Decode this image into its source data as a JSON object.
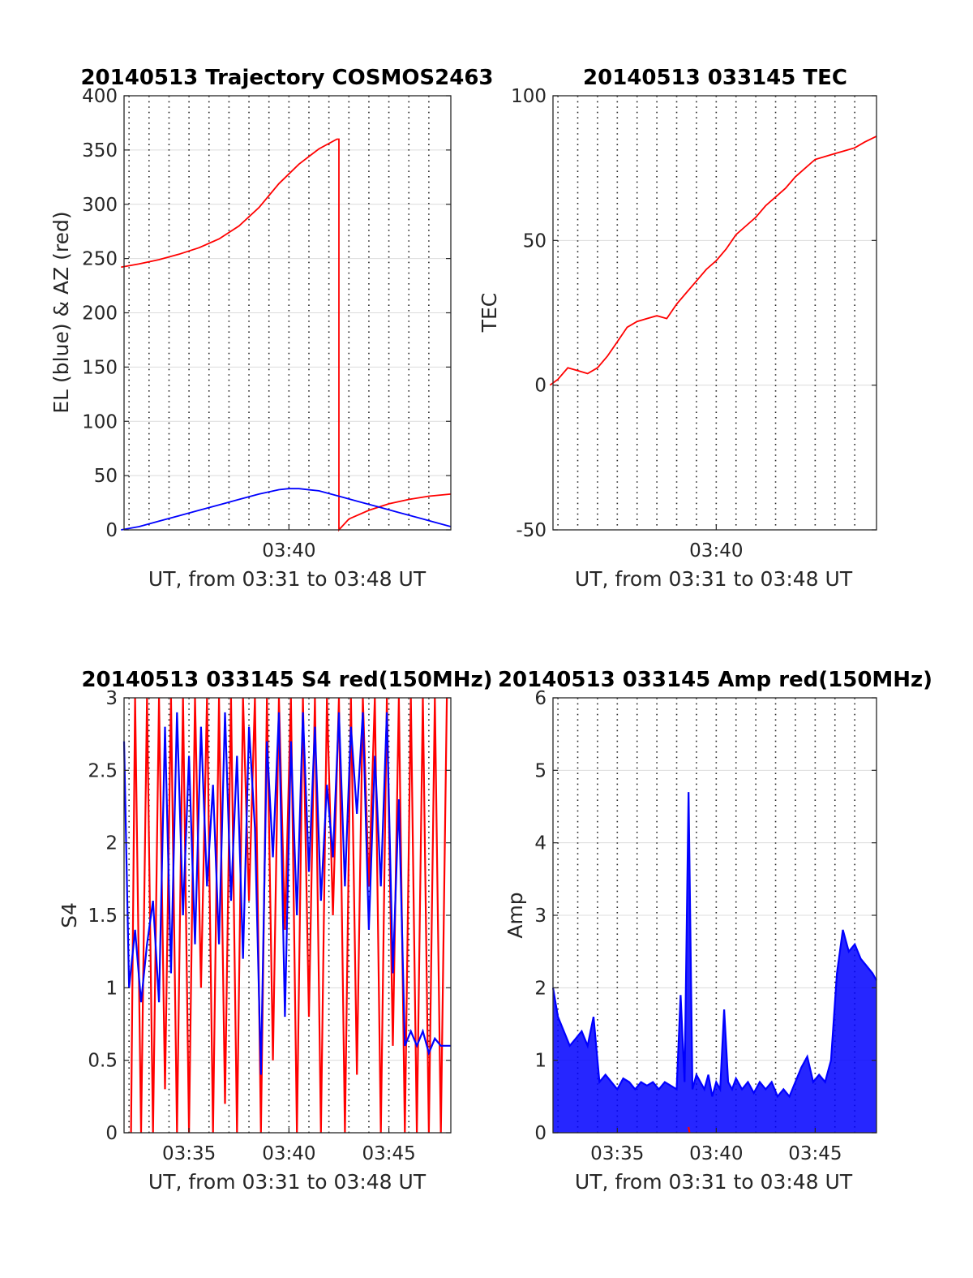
{
  "figure": {
    "colors": {
      "red": "#ff0000",
      "blue": "#0000ff",
      "axis": "#262626",
      "grid": "#262626"
    }
  },
  "chart_data": [
    {
      "type": "line",
      "title": "20140513 Trajectory COSMOS2463",
      "xlabel": "UT, from 03:31 to 03:48 UT",
      "ylabel": "EL (blue) & AZ (red)",
      "xlim_minutes": [
        211.75,
        228.1
      ],
      "ylim": [
        0,
        400
      ],
      "yticks": [
        0,
        50,
        100,
        150,
        200,
        250,
        300,
        350,
        400
      ],
      "yticklabels": [
        "0",
        "50",
        "100",
        "150",
        "200",
        "250",
        "300",
        "350",
        "400"
      ],
      "xticks": [
        220
      ],
      "xticklabels": [
        "03:40"
      ],
      "grid_x_minutes": [
        212,
        213,
        214,
        215,
        216,
        217,
        218,
        219,
        220,
        221,
        222,
        223,
        224,
        225,
        226,
        227
      ],
      "grid": "dotted vertical, light horizontal",
      "series": [
        {
          "name": "AZ",
          "color": "red",
          "x_minutes": [
            211.6,
            212.5,
            213.5,
            214.5,
            215.5,
            216.5,
            217.5,
            218.5,
            219.5,
            220.5,
            221.5,
            222.4,
            222.5,
            222.5,
            223,
            224,
            225,
            226,
            227,
            228.1
          ],
          "values": [
            242,
            245,
            249,
            254,
            260,
            268,
            280,
            297,
            319,
            337,
            351,
            360,
            360,
            0,
            10,
            18,
            24,
            28,
            31,
            33
          ]
        },
        {
          "name": "EL",
          "color": "blue",
          "x_minutes": [
            211.6,
            212.5,
            213.5,
            214.5,
            215.5,
            216.5,
            217.5,
            218.5,
            219.5,
            220,
            220.5,
            221.5,
            222.5,
            223.5,
            224.5,
            225.5,
            226.5,
            227.5,
            228.1
          ],
          "values": [
            0,
            3,
            8,
            13,
            18,
            23,
            28,
            33,
            37,
            38,
            38,
            36,
            31,
            26,
            21,
            16,
            11,
            6,
            3
          ]
        }
      ]
    },
    {
      "type": "line",
      "title": "20140513 033145 TEC",
      "xlabel": "UT, from 03:31 to 03:48 UT",
      "ylabel": "TEC",
      "xlim_minutes": [
        211.75,
        228.1
      ],
      "ylim": [
        -50,
        100
      ],
      "yticks": [
        -50,
        0,
        50,
        100
      ],
      "yticklabels": [
        "-50",
        "0",
        "50",
        "100"
      ],
      "xticks": [
        220
      ],
      "xticklabels": [
        "03:40"
      ],
      "grid_x_minutes": [
        212,
        213,
        214,
        215,
        216,
        217,
        218,
        219,
        220,
        221,
        222,
        223,
        224,
        225,
        226,
        227
      ],
      "series": [
        {
          "name": "TEC",
          "color": "red",
          "x_minutes": [
            211.6,
            212,
            212.5,
            213,
            213.5,
            214,
            214.5,
            215,
            215.5,
            216,
            216.5,
            217,
            217.5,
            218,
            218.5,
            219,
            219.5,
            220,
            220.5,
            221,
            221.5,
            222,
            222.5,
            223,
            223.5,
            224,
            224.5,
            225,
            225.5,
            226,
            226.5,
            227,
            227.5,
            228.1
          ],
          "values": [
            0,
            2,
            6,
            5,
            4,
            6,
            10,
            15,
            20,
            22,
            23,
            24,
            23,
            28,
            32,
            36,
            40,
            43,
            47,
            52,
            55,
            58,
            62,
            65,
            68,
            72,
            75,
            78,
            79,
            80,
            81,
            82,
            84,
            86
          ]
        }
      ]
    },
    {
      "type": "line",
      "title": "20140513 033145 S4 red(150MHz)",
      "xlabel": "UT, from 03:31 to 03:48 UT",
      "ylabel": "S4",
      "xlim_minutes": [
        211.75,
        228.1
      ],
      "ylim": [
        0,
        3
      ],
      "yticks": [
        0,
        0.5,
        1,
        1.5,
        2,
        2.5,
        3
      ],
      "yticklabels": [
        "0",
        "0.5",
        "1",
        "1.5",
        "2",
        "2.5",
        "3"
      ],
      "xticks": [
        215,
        220,
        225
      ],
      "xticklabels": [
        "03:35",
        "03:40",
        "03:45"
      ],
      "grid_x_minutes": [
        212,
        213,
        214,
        215,
        216,
        217,
        218,
        219,
        220,
        221,
        222,
        223,
        224,
        225,
        226,
        227
      ],
      "series": [
        {
          "name": "S4 red",
          "color": "red",
          "x_minutes": [
            212.1,
            212.3,
            212.6,
            212.9,
            213.2,
            213.5,
            213.8,
            214.1,
            214.4,
            214.7,
            215.0,
            215.3,
            215.6,
            215.9,
            216.2,
            216.5,
            216.8,
            217.1,
            217.4,
            217.7,
            218.0,
            218.3,
            218.6,
            218.9,
            219.2,
            219.5,
            219.8,
            220.1,
            220.4,
            220.7,
            221.0,
            221.3,
            221.6,
            221.9,
            222.2,
            222.5,
            222.8,
            223.1,
            223.4,
            223.7,
            224.0,
            224.3,
            224.6,
            224.9,
            225.2,
            225.5,
            225.8,
            226.1,
            226.4,
            226.7,
            227.0,
            227.3,
            227.6,
            227.9
          ],
          "values": [
            0,
            3,
            0,
            3,
            0,
            3,
            0.3,
            3,
            0,
            3,
            0,
            3,
            1,
            3,
            0,
            3,
            0.2,
            3,
            0,
            3,
            1.6,
            3,
            0,
            3,
            0.5,
            3,
            1.4,
            3,
            0,
            3,
            0.8,
            3,
            0,
            3,
            1.5,
            3,
            0,
            3,
            0.4,
            3,
            1.7,
            3,
            0,
            3,
            0.6,
            3,
            0,
            3,
            0,
            3,
            0,
            3,
            0,
            3
          ]
        },
        {
          "name": "S4 blue",
          "color": "blue",
          "x_minutes": [
            211.75,
            212.0,
            212.3,
            212.6,
            212.9,
            213.2,
            213.5,
            213.8,
            214.1,
            214.4,
            214.7,
            215.0,
            215.3,
            215.6,
            215.9,
            216.2,
            216.5,
            216.8,
            217.1,
            217.4,
            217.7,
            218.0,
            218.3,
            218.6,
            218.9,
            219.2,
            219.5,
            219.8,
            220.1,
            220.4,
            220.7,
            221.0,
            221.3,
            221.6,
            221.9,
            222.2,
            222.5,
            222.8,
            223.1,
            223.4,
            223.7,
            224.0,
            224.3,
            224.6,
            224.9,
            225.2,
            225.5,
            225.8,
            226.1,
            226.4,
            226.7,
            227.0,
            227.3,
            227.6,
            228.1
          ],
          "values": [
            2.7,
            1.0,
            1.4,
            0.9,
            1.3,
            1.6,
            0.9,
            2.8,
            1.1,
            2.9,
            1.5,
            2.6,
            1.3,
            2.8,
            1.7,
            2.4,
            1.3,
            2.9,
            1.6,
            2.6,
            1.2,
            2.8,
            2.1,
            0.4,
            2.7,
            1.9,
            2.9,
            0.8,
            2.7,
            1.5,
            2.9,
            1.8,
            2.8,
            1.6,
            2.4,
            1.9,
            2.9,
            1.7,
            2.8,
            2.2,
            2.9,
            1.4,
            2.6,
            1.7,
            2.9,
            1.1,
            2.3,
            0.6,
            0.7,
            0.6,
            0.7,
            0.55,
            0.65,
            0.6,
            0.6
          ]
        }
      ]
    },
    {
      "type": "line",
      "title": "20140513 033145 Amp red(150MHz)",
      "xlabel": "UT, from 03:31 to 03:48 UT",
      "ylabel": "Amp",
      "xlim_minutes": [
        211.75,
        228.1
      ],
      "ylim": [
        0,
        6
      ],
      "yticks": [
        0,
        1,
        2,
        3,
        4,
        5,
        6
      ],
      "yticklabels": [
        "0",
        "1",
        "2",
        "3",
        "4",
        "5",
        "6"
      ],
      "xticks": [
        215,
        220,
        225
      ],
      "xticklabels": [
        "03:35",
        "03:40",
        "03:45"
      ],
      "grid_x_minutes": [
        212,
        213,
        214,
        215,
        216,
        217,
        218,
        219,
        220,
        221,
        222,
        223,
        224,
        225,
        226,
        227
      ],
      "series": [
        {
          "name": "Amp blue",
          "color": "blue",
          "x_minutes": [
            211.75,
            212.0,
            212.3,
            212.6,
            212.9,
            213.2,
            213.5,
            213.8,
            214.1,
            214.4,
            214.7,
            215.0,
            215.3,
            215.6,
            215.9,
            216.2,
            216.5,
            216.8,
            217.1,
            217.4,
            217.7,
            218.0,
            218.2,
            218.4,
            218.6,
            218.8,
            219.0,
            219.2,
            219.4,
            219.6,
            219.8,
            220.0,
            220.2,
            220.4,
            220.6,
            220.8,
            221.0,
            221.3,
            221.6,
            221.9,
            222.2,
            222.5,
            222.8,
            223.1,
            223.4,
            223.7,
            224.0,
            224.3,
            224.6,
            224.9,
            225.2,
            225.5,
            225.8,
            226.1,
            226.4,
            226.7,
            227.0,
            227.3,
            227.6,
            227.9,
            228.1
          ],
          "values": [
            2.0,
            1.6,
            1.4,
            1.2,
            1.3,
            1.4,
            1.2,
            1.6,
            0.7,
            0.8,
            0.7,
            0.6,
            0.75,
            0.7,
            0.6,
            0.7,
            0.65,
            0.7,
            0.6,
            0.7,
            0.65,
            0.6,
            1.9,
            0.7,
            4.7,
            0.6,
            0.8,
            0.7,
            0.6,
            0.8,
            0.5,
            0.7,
            0.6,
            1.7,
            0.7,
            0.6,
            0.75,
            0.6,
            0.7,
            0.55,
            0.7,
            0.6,
            0.7,
            0.5,
            0.6,
            0.5,
            0.7,
            0.9,
            1.05,
            0.7,
            0.8,
            0.7,
            1.0,
            2.2,
            2.8,
            2.5,
            2.6,
            2.4,
            2.3,
            2.2,
            2.1
          ]
        },
        {
          "name": "Amp red",
          "color": "red",
          "x_minutes": [
            218.6,
            218.65
          ],
          "values": [
            0.08,
            0.0
          ]
        }
      ]
    }
  ]
}
